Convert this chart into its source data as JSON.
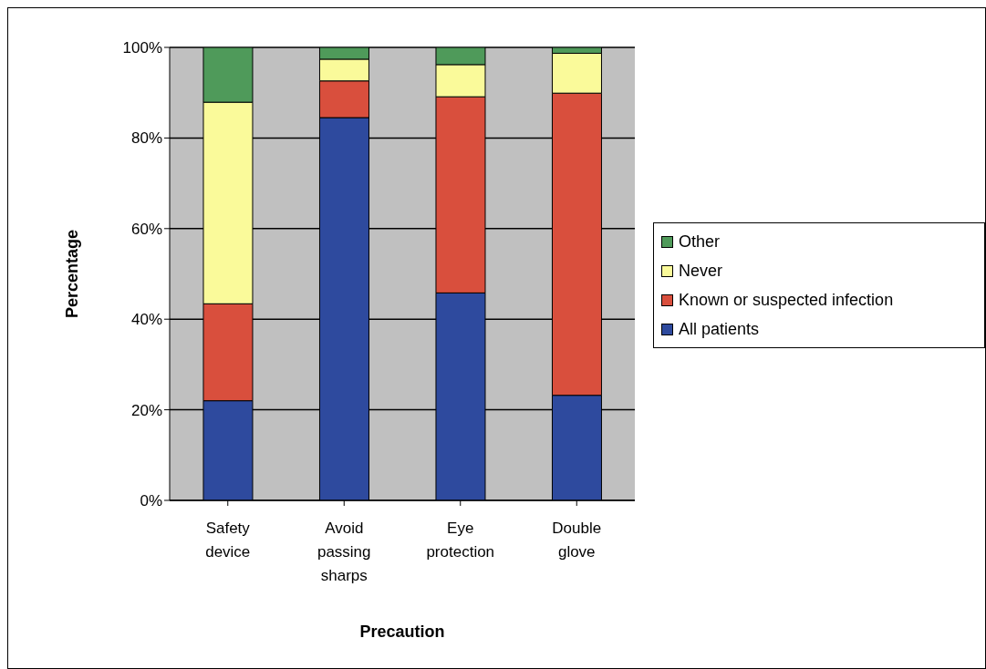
{
  "chart_data": {
    "type": "bar",
    "stacked": true,
    "xlabel": "Precaution",
    "ylabel": "Percentage",
    "categories": [
      "Safety device",
      "Avoid passing sharps",
      "Eye protection",
      "Double glove"
    ],
    "series": [
      {
        "name": "All patients",
        "color": "#2e4a9e",
        "values": [
          22.0,
          84.5,
          45.8,
          23.2
        ]
      },
      {
        "name": "Known or suspected infection",
        "color": "#d94f3d",
        "values": [
          21.4,
          8.1,
          43.3,
          66.7
        ]
      },
      {
        "name": "Never",
        "color": "#fafa9a",
        "values": [
          44.5,
          4.8,
          7.1,
          8.8
        ]
      },
      {
        "name": "Other",
        "color": "#4f9a5a",
        "values": [
          12.1,
          2.6,
          3.8,
          1.3
        ]
      }
    ],
    "ylim": [
      0,
      100
    ],
    "yticks": [
      {
        "value": 0,
        "label": "0%"
      },
      {
        "value": 20,
        "label": "20%"
      },
      {
        "value": 40,
        "label": "40%"
      },
      {
        "value": 60,
        "label": "60%"
      },
      {
        "value": 80,
        "label": "80%"
      },
      {
        "value": 100,
        "label": "100%"
      }
    ],
    "grid": "y",
    "legend": "right"
  }
}
